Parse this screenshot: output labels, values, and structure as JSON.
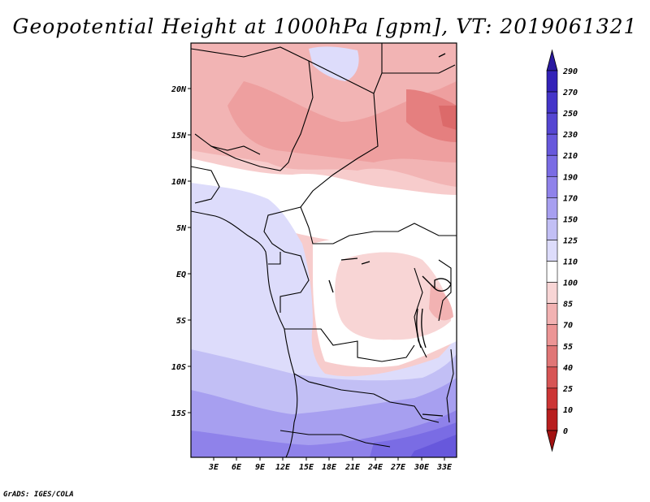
{
  "title": "Geopotential Height at 1000hPa [gpm], VT: 2019061321",
  "credit": "GrADS: IGES/COLA",
  "map": {
    "lat_ticks": [
      "20N",
      "15N",
      "10N",
      "5N",
      "EQ",
      "5S",
      "10S",
      "15S"
    ],
    "lon_ticks": [
      "3E",
      "6E",
      "9E",
      "12E",
      "15E",
      "18E",
      "21E",
      "24E",
      "27E",
      "30E",
      "33E"
    ]
  },
  "colorbar": {
    "levels": [
      "290",
      "270",
      "250",
      "230",
      "210",
      "190",
      "170",
      "150",
      "125",
      "110",
      "100",
      "85",
      "70",
      "55",
      "40",
      "25",
      "10",
      "0"
    ],
    "colors": [
      "#2a1aa0",
      "#3322b8",
      "#4435c9",
      "#5546d2",
      "#6758dc",
      "#7a6ce4",
      "#8f82ea",
      "#a79ff0",
      "#c2bff5",
      "#dddcfb",
      "#ffffff",
      "#f8d5d5",
      "#f2b2b2",
      "#ec9595",
      "#e07676",
      "#d75555",
      "#cc3535",
      "#b81e1e",
      "#a21212"
    ]
  }
}
